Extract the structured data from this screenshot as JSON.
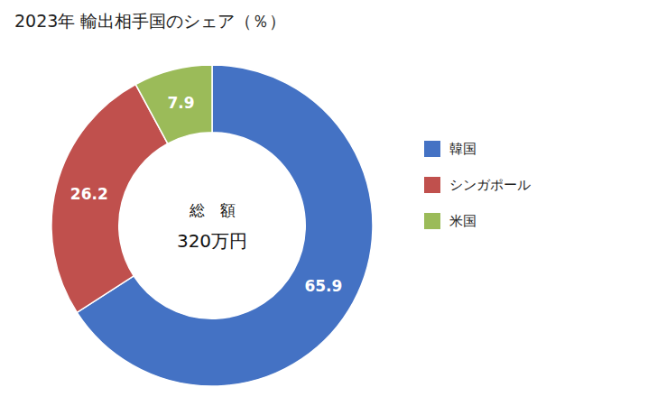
{
  "chart_data": {
    "type": "donut",
    "title": "2023年 輸出相手国のシェア（％）",
    "categories": [
      "韓国",
      "シンガポール",
      "米国"
    ],
    "values": [
      65.9,
      26.2,
      7.9
    ],
    "colors": [
      "#4472C4",
      "#C0504D",
      "#9BBB59"
    ],
    "annotations": [
      "総　額",
      "320万円"
    ],
    "data_labels": true,
    "legend": "right"
  }
}
